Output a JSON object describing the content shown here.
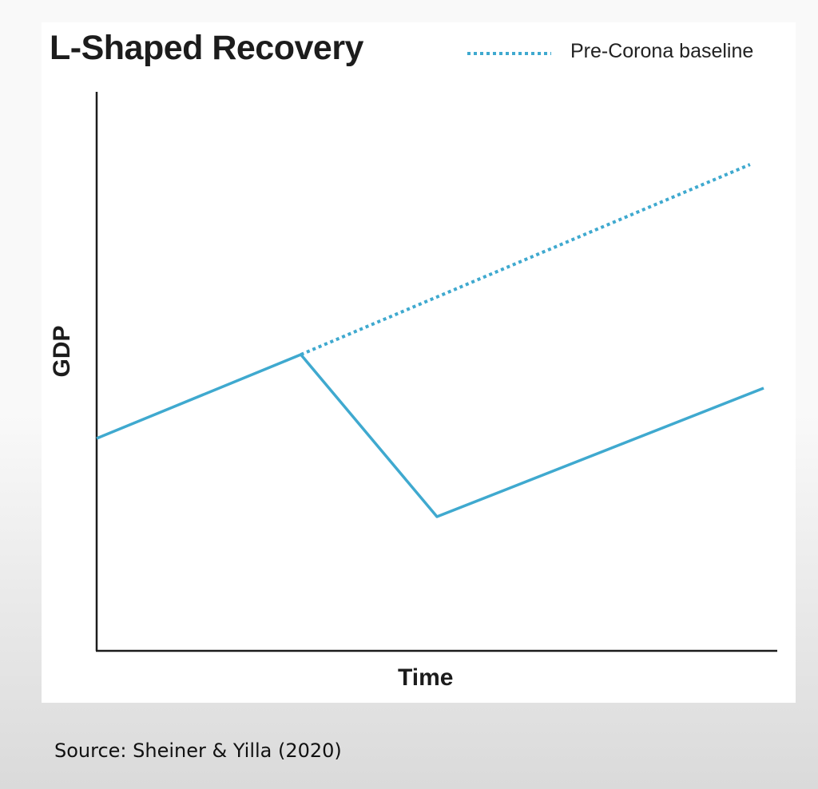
{
  "chart_data": {
    "type": "line",
    "title": "L-Shaped Recovery",
    "xlabel": "Time",
    "ylabel": "GDP",
    "source": "Source: Sheiner & Yilla (2020)",
    "legend": {
      "label": "Pre-Corona baseline",
      "placement": "top-right",
      "style": "dotted"
    },
    "grid": false,
    "xlim": [
      0,
      100
    ],
    "ylim": [
      0,
      100
    ],
    "colors": {
      "line": "#3fa9cf",
      "axis": "#1c1c1c"
    },
    "series": [
      {
        "name": "Pre-Corona baseline",
        "style": "dotted",
        "x": [
          30,
          96
        ],
        "y": [
          53,
          87
        ]
      },
      {
        "style": "solid",
        "x": [
          0,
          30,
          50,
          98
        ],
        "y": [
          38,
          53,
          24,
          47
        ]
      }
    ]
  }
}
